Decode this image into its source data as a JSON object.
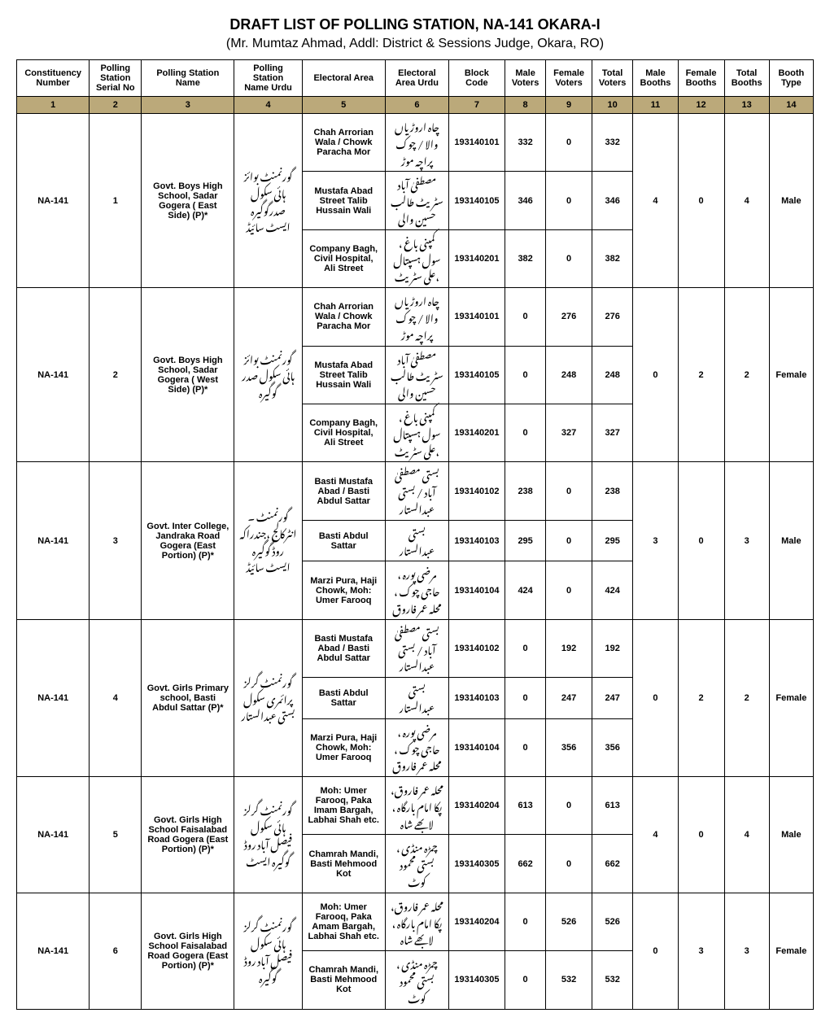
{
  "title": "DRAFT LIST OF POLLING STATION, NA-141 OKARA-I",
  "subtitle": "(Mr. Mumtaz Ahmad, Addl: District & Sessions Judge, Okara, RO)",
  "headers": [
    "Constituency Number",
    "Polling Station Serial No",
    "Polling Station Name",
    "Polling Station Name Urdu",
    "Electoral Area",
    "Electoral Area Urdu",
    "Block Code",
    "Male Voters",
    "Female Voters",
    "Total Voters",
    "Male Booths",
    "Female Booths",
    "Total Booths",
    "Booth Type"
  ],
  "colnums": [
    "1",
    "2",
    "3",
    "4",
    "5",
    "6",
    "7",
    "8",
    "9",
    "10",
    "11",
    "12",
    "13",
    "14"
  ],
  "stations": [
    {
      "constituency": "NA-141",
      "serial": "1",
      "name": "Govt. Boys High School, Sadar Gogera ( East Side) (P)*",
      "name_ur": "گورنمنٹ بوائز ہائی سکول صدرگوگیرہ ایسٹ سائیڈ",
      "male_booths": "4",
      "female_booths": "0",
      "total_booths": "4",
      "type": "Male",
      "areas": [
        {
          "e": "Chah Arrorian Wala / Chowk Paracha Mor",
          "u": "چاہ اروڑیاں والا / چوک پراچہ موڑ",
          "code": "193140101",
          "m": "332",
          "f": "0",
          "t": "332"
        },
        {
          "e": "Mustafa Abad Street Talib Hussain Wali",
          "u": "مصطفیٰ آباد سٹریٹ طالب حسین والی",
          "code": "193140105",
          "m": "346",
          "f": "0",
          "t": "346"
        },
        {
          "e": "Company Bagh, Civil Hospital, Ali Street",
          "u": "کمپنی باغ ، سول ہسپتال ،علی سٹریٹ",
          "code": "193140201",
          "m": "382",
          "f": "0",
          "t": "382"
        }
      ]
    },
    {
      "constituency": "NA-141",
      "serial": "2",
      "name": "Govt. Boys High School, Sadar Gogera ( West Side) (P)*",
      "name_ur": "گورنمنٹ بوائز ہائی سکول صدر گوگیرہ",
      "male_booths": "0",
      "female_booths": "2",
      "total_booths": "2",
      "type": "Female",
      "areas": [
        {
          "e": "Chah Arrorian Wala / Chowk Paracha Mor",
          "u": "چاہ اروڑیاں والا / چوک پراچہ موڑ",
          "code": "193140101",
          "m": "0",
          "f": "276",
          "t": "276"
        },
        {
          "e": "Mustafa Abad Street Talib Hussain Wali",
          "u": "مصطفیٰ آباد سٹریٹ طالب حسین والی",
          "code": "193140105",
          "m": "0",
          "f": "248",
          "t": "248"
        },
        {
          "e": "Company Bagh, Civil Hospital, Ali Street",
          "u": "کمپنی باغ ، سول ہسپتال ،علی سٹریٹ",
          "code": "193140201",
          "m": "0",
          "f": "327",
          "t": "327"
        }
      ]
    },
    {
      "constituency": "NA-141",
      "serial": "3",
      "name": "Govt. Inter College, Jandraka Road Gogera (East Portion) (P)*",
      "name_ur": "گورنمنٹ ۔انٹرکالج ،جندراکہ روڈ گوگیرہ ایسٹ سائیڈ",
      "male_booths": "3",
      "female_booths": "0",
      "total_booths": "3",
      "type": "Male",
      "areas": [
        {
          "e": "Basti Mustafa Abad / Basti Abdul Sattar",
          "u": "بستی مصطفیٰ آباد / بستی عبدالستار",
          "code": "193140102",
          "m": "238",
          "f": "0",
          "t": "238"
        },
        {
          "e": "Basti Abdul Sattar",
          "u": "بستی عبدالستار",
          "code": "193140103",
          "m": "295",
          "f": "0",
          "t": "295"
        },
        {
          "e": "Marzi Pura, Haji Chowk, Moh: Umer Farooq",
          "u": "مرضی پورہ ، حاجی چوک ، محلہ عمر فاروق",
          "code": "193140104",
          "m": "424",
          "f": "0",
          "t": "424"
        }
      ]
    },
    {
      "constituency": "NA-141",
      "serial": "4",
      "name": "Govt. Girls Primary school, Basti Abdul Sattar (P)*",
      "name_ur": "گورنمنٹ گرلز پرائمری سکول بستی عبدالستار",
      "male_booths": "0",
      "female_booths": "2",
      "total_booths": "2",
      "type": "Female",
      "areas": [
        {
          "e": "Basti Mustafa Abad / Basti Abdul Sattar",
          "u": "بستی مصطفیٰ آباد / بستی عبدالستار",
          "code": "193140102",
          "m": "0",
          "f": "192",
          "t": "192"
        },
        {
          "e": "Basti Abdul Sattar",
          "u": "بستی عبدالستار",
          "code": "193140103",
          "m": "0",
          "f": "247",
          "t": "247"
        },
        {
          "e": "Marzi Pura, Haji Chowk, Moh: Umer Farooq",
          "u": "مرضی پورہ ، حاجی چوک ، محلہ عمر فاروق",
          "code": "193140104",
          "m": "0",
          "f": "356",
          "t": "356"
        }
      ]
    },
    {
      "constituency": "NA-141",
      "serial": "5",
      "name": "Govt. Girls High School Faisalabad Road Gogera (East Portion) (P)*",
      "name_ur": "گورنمنٹ گرلز ہائی سکول فیصل آباد روڈ گوگیرہ ایسٹ",
      "male_booths": "4",
      "female_booths": "0",
      "total_booths": "4",
      "type": "Male",
      "areas": [
        {
          "e": "Moh: Umer Farooq, Paka Imam Bargah, Labhai Shah etc.",
          "u": "محلہ عمر فاروق، پکا امام بارگاہ ، لابھے شاہ",
          "code": "193140204",
          "m": "613",
          "f": "0",
          "t": "613"
        },
        {
          "e": "Chamrah Mandi, Basti Mehmood Kot",
          "u": "چمڑہ منڈی ، بستی محمود کوٹ",
          "code": "193140305",
          "m": "662",
          "f": "0",
          "t": "662"
        }
      ]
    },
    {
      "constituency": "NA-141",
      "serial": "6",
      "name": "Govt. Girls High School Faisalabad Road Gogera (East Portion) (P)*",
      "name_ur": "گورنمنٹ گرلز ہائی سکول فیصل آباد روڈ گوگیرہ",
      "male_booths": "0",
      "female_booths": "3",
      "total_booths": "3",
      "type": "Female",
      "areas": [
        {
          "e": "Moh: Umer Farooq, Paka Amam Bargah, Labhai Shah etc.",
          "u": "محلہ عمر فاروق، پکا امام بارگاہ ، لابھے شاہ",
          "code": "193140204",
          "m": "0",
          "f": "526",
          "t": "526"
        },
        {
          "e": "Chamrah Mandi, Basti Mehmood Kot",
          "u": "چمڑہ منڈی ، بستی محمود کوٹ",
          "code": "193140305",
          "m": "0",
          "f": "532",
          "t": "532"
        }
      ]
    }
  ]
}
